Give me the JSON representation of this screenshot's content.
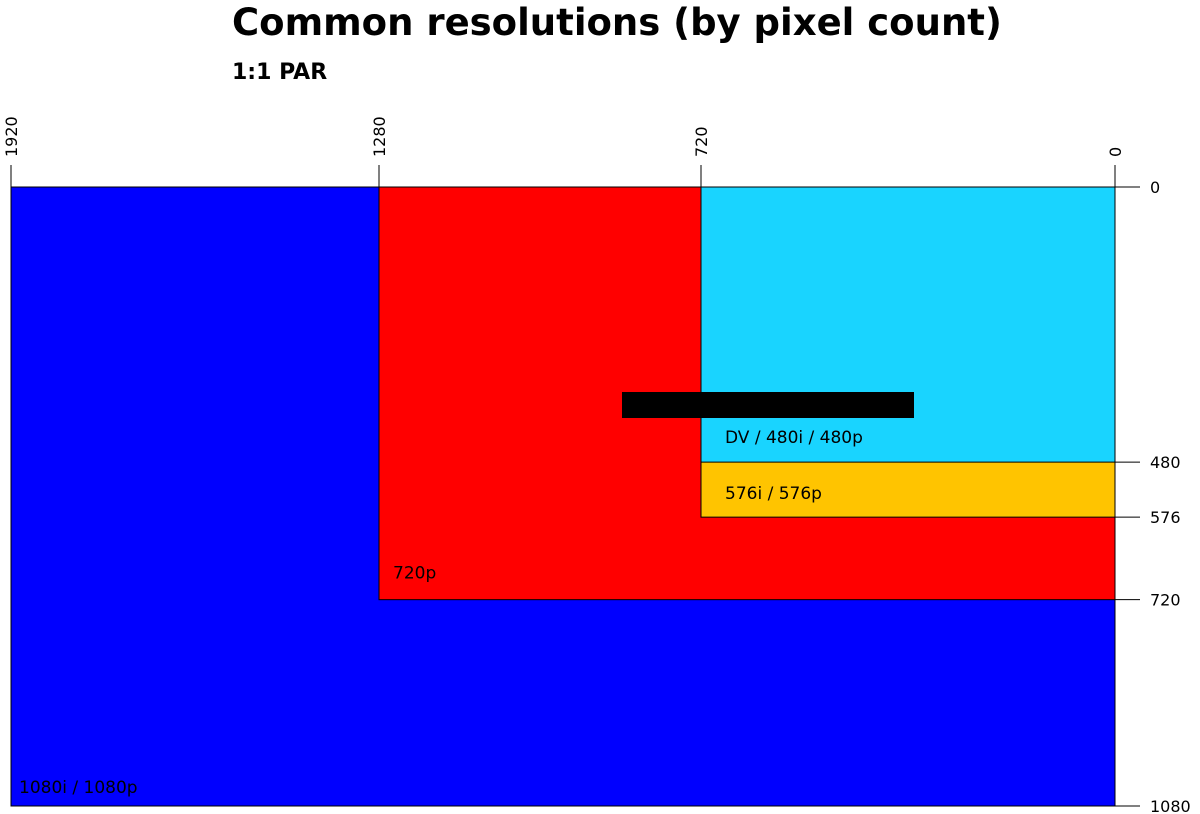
{
  "title": "Common resolutions (by pixel count)",
  "subtitle": "1:1 PAR",
  "chart_data": {
    "type": "diagram",
    "x_axis": {
      "ticks": [
        1920,
        1280,
        720,
        0
      ],
      "reversed": true,
      "range": [
        0,
        1920
      ]
    },
    "y_axis": {
      "ticks": [
        0,
        480,
        576,
        720,
        1080
      ],
      "range": [
        0,
        1080
      ]
    },
    "regions": [
      {
        "label": "1080i / 1080p",
        "width": 1920,
        "height": 1080,
        "color": "#0000ff"
      },
      {
        "label": "720p",
        "width": 1280,
        "height": 720,
        "color": "#ff0000"
      },
      {
        "label": "576i / 576p",
        "width": 720,
        "height": 576,
        "color": "#ffc400"
      },
      {
        "label": "DV / 480i / 480p",
        "width": 720,
        "height": 480,
        "color": "#19d4ff"
      }
    ],
    "redaction_bar_color": "#000000"
  }
}
